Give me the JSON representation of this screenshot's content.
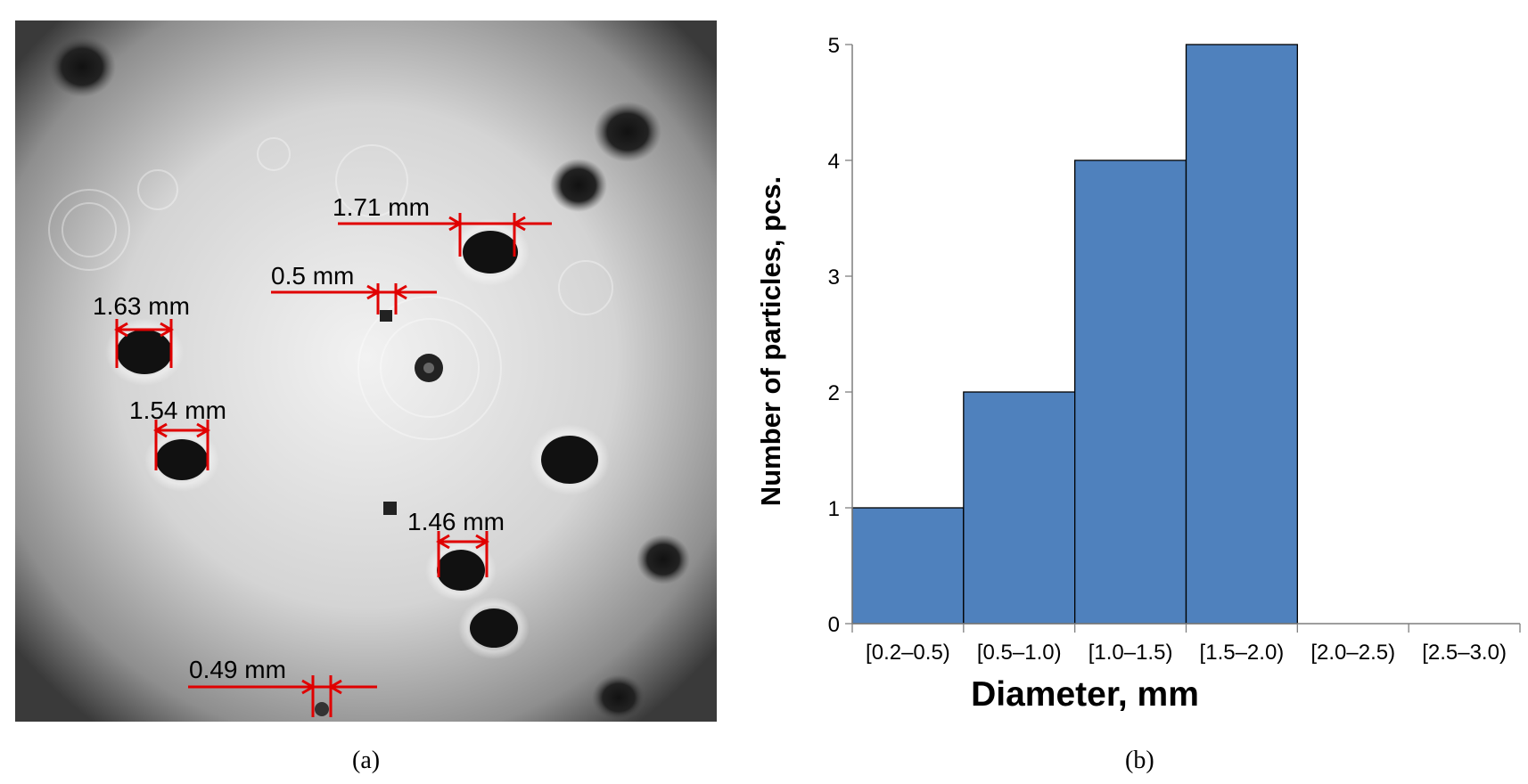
{
  "figure": {
    "caption_a": "(a)",
    "caption_b": "(b)",
    "colors": {
      "bar_fill": "#4f81bd",
      "measure_line": "#e00000"
    }
  },
  "panel_a": {
    "measurements": [
      {
        "label": "1.71 mm"
      },
      {
        "label": "0.5 mm"
      },
      {
        "label": "1.63 mm"
      },
      {
        "label": "1.54 mm"
      },
      {
        "label": "1.46 mm"
      },
      {
        "label": "0.49 mm"
      }
    ]
  },
  "chart_data": {
    "type": "bar",
    "categories": [
      "[0.2–0.5)",
      "[0.5–1.0)",
      "[1.0–1.5)",
      "[1.5–2.0)",
      "[2.0–2.5)",
      "[2.5–3.0)"
    ],
    "values": [
      1,
      2,
      4,
      5,
      0,
      0
    ],
    "xlabel": "Diameter, mm",
    "ylabel": "Number of particles, pcs.",
    "ylim": [
      0,
      5
    ],
    "yticks": [
      0,
      1,
      2,
      3,
      4,
      5
    ],
    "grid": false,
    "legend": "none"
  }
}
